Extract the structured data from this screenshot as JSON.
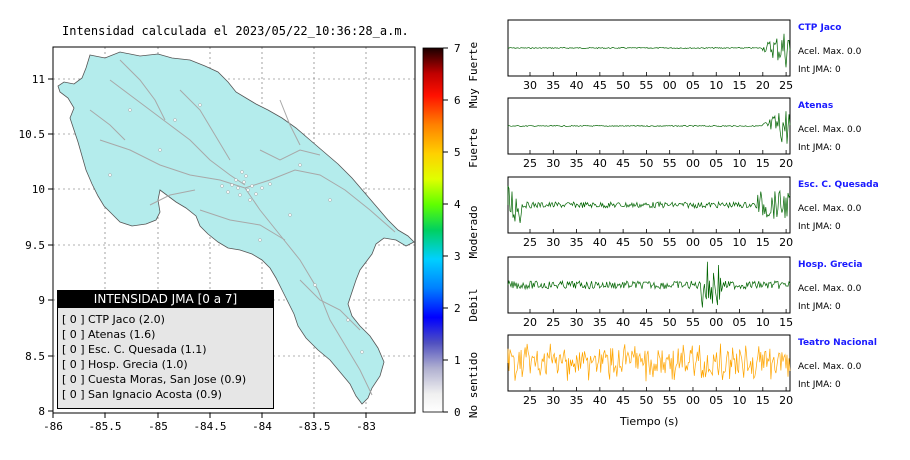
{
  "map": {
    "title": "Intensidad calculada el 2023/05/22_10:36:28_a.m.",
    "lon_ticks": [
      "-86",
      "-85.5",
      "-85",
      "-84.5",
      "-84",
      "-83.5",
      "-83"
    ],
    "lat_ticks": [
      "11",
      "10.5",
      "10",
      "9.5",
      "9",
      "8.5",
      "8"
    ],
    "land_color": "#b4ecec",
    "road_color": "#a8a8a8"
  },
  "colorbar": {
    "ticks": [
      "0",
      "1",
      "2",
      "3",
      "4",
      "5",
      "6",
      "7"
    ],
    "labels": [
      "No sentido",
      "Debil",
      "Moderado",
      "Fuerte",
      "Muy Fuerte"
    ]
  },
  "legend": {
    "header": "INTENSIDAD JMA [0 a 7]",
    "items": [
      {
        "level": "[ 0 ]",
        "station": "CTP Jaco (2.0)"
      },
      {
        "level": "[ 0 ]",
        "station": "Atenas (1.6)"
      },
      {
        "level": "[ 0 ]",
        "station": "Esc. C. Quesada (1.1)"
      },
      {
        "level": "[ 0 ]",
        "station": "Hosp. Grecia (1.0)"
      },
      {
        "level": "[ 0 ]",
        "station": "Cuesta Moras, San Jose (0.9)"
      },
      {
        "level": "[ 0 ]",
        "station": "San Ignacio Acosta (0.9)"
      }
    ]
  },
  "seismograms": {
    "xlabel": "Tiempo (s)",
    "stations": [
      {
        "name": "CTP Jaco",
        "acel": "Acel. Max. 0.0",
        "jma": "Int JMA: 0",
        "color": "#006400",
        "ticks": [
          "30",
          "35",
          "40",
          "45",
          "50",
          "55",
          "00",
          "05",
          "10",
          "15",
          "20",
          "25"
        ],
        "burst": "end"
      },
      {
        "name": "Atenas",
        "acel": "Acel. Max. 0.0",
        "jma": "Int JMA: 0",
        "color": "#006400",
        "ticks": [
          "25",
          "30",
          "35",
          "40",
          "45",
          "50",
          "55",
          "00",
          "05",
          "10",
          "15",
          "20"
        ],
        "burst": "end"
      },
      {
        "name": "Esc. C. Quesada",
        "acel": "Acel. Max. 0.0",
        "jma": "Int JMA: 0",
        "color": "#006400",
        "ticks": [
          "25",
          "30",
          "35",
          "40",
          "45",
          "50",
          "55",
          "00",
          "05",
          "10",
          "15",
          "20"
        ],
        "burst": "both"
      },
      {
        "name": "Hosp. Grecia",
        "acel": "Acel. Max. 0.0",
        "jma": "Int JMA: 0",
        "color": "#006400",
        "ticks": [
          "20",
          "25",
          "30",
          "35",
          "40",
          "45",
          "50",
          "55",
          "00",
          "05",
          "10",
          "15"
        ],
        "burst": "mid"
      },
      {
        "name": "Teatro Nacional",
        "acel": "Acel. Max. 0.0",
        "jma": "Int JMA: 0",
        "color": "#ffa500",
        "ticks": [
          "25",
          "30",
          "35",
          "40",
          "45",
          "50",
          "55",
          "00",
          "05",
          "10",
          "15",
          "20"
        ],
        "burst": "noise"
      }
    ]
  }
}
